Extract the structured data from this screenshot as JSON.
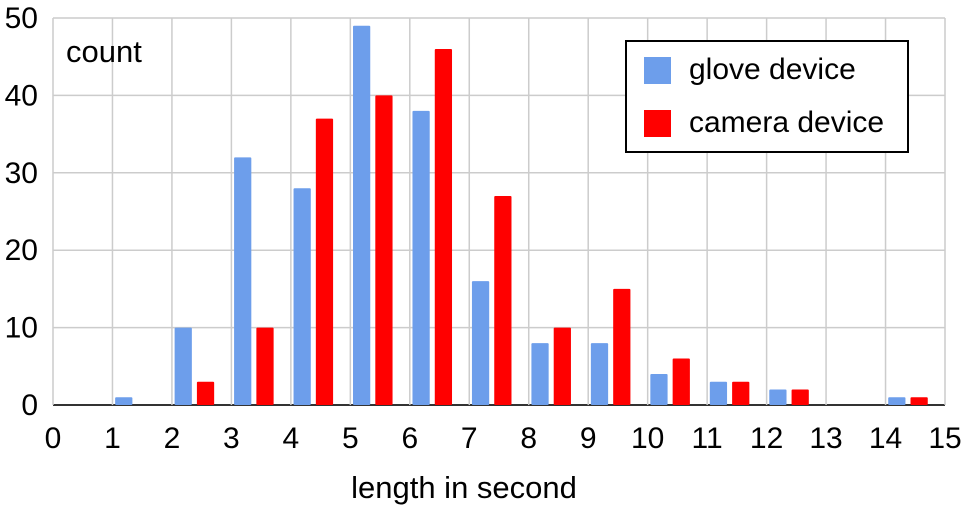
{
  "chart_data": {
    "type": "bar",
    "title": "",
    "xlabel": "length in second",
    "ylabel": "count",
    "xlim": [
      0,
      15
    ],
    "ylim": [
      0,
      50
    ],
    "x_ticks": [
      "0",
      "1",
      "2",
      "3",
      "4",
      "5",
      "6",
      "7",
      "8",
      "9",
      "10",
      "11",
      "12",
      "13",
      "14",
      "15"
    ],
    "y_ticks": [
      "0",
      "10",
      "20",
      "30",
      "40",
      "50"
    ],
    "grid": true,
    "legend_position": "top-right",
    "categories": [
      1,
      2,
      3,
      4,
      5,
      6,
      7,
      8,
      9,
      10,
      11,
      12,
      13,
      14
    ],
    "series": [
      {
        "name": "glove device",
        "color": "#6d9eeb",
        "values": [
          1,
          10,
          32,
          28,
          49,
          38,
          16,
          8,
          8,
          4,
          3,
          2,
          0,
          1
        ]
      },
      {
        "name": "camera device",
        "color": "#ff0000",
        "values": [
          0,
          3,
          10,
          37,
          40,
          46,
          27,
          10,
          15,
          6,
          3,
          2,
          0,
          1
        ]
      }
    ]
  }
}
